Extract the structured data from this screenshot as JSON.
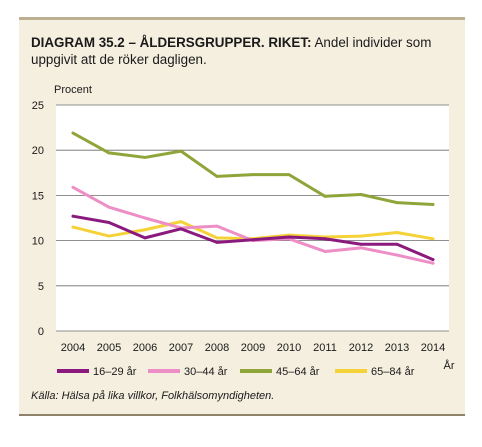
{
  "figure": {
    "title_label": "DIAGRAM 35.2 – ÅLDERSGRUPPER. RIKET:",
    "title_text": " Andel individer som uppgivit att de röker dagligen.",
    "source": "Källa: Hälsa på lika villkor, Folkhälsomyndigheten."
  },
  "chart_data": {
    "type": "line",
    "ylabel": "Procent",
    "xlabel": "År",
    "ylim": [
      0,
      25
    ],
    "yticks": [
      0,
      5,
      10,
      15,
      20,
      25
    ],
    "grid": true,
    "legend_position": "bottom",
    "categories": [
      "2004",
      "2005",
      "2006",
      "2007",
      "2008",
      "2009",
      "2010",
      "2011",
      "2012",
      "2013",
      "2014"
    ],
    "series": [
      {
        "name": "16–29 år",
        "color": "#8b1a7e",
        "values": [
          12.7,
          12.0,
          10.3,
          11.3,
          9.8,
          10.1,
          10.4,
          10.2,
          9.6,
          9.6,
          7.9
        ]
      },
      {
        "name": "30–44 år",
        "color": "#ee8ec6",
        "values": [
          15.9,
          13.7,
          12.5,
          11.4,
          11.6,
          10.0,
          10.2,
          8.8,
          9.2,
          8.4,
          7.5
        ]
      },
      {
        "name": "45–64 år",
        "color": "#8fa53a",
        "values": [
          21.9,
          19.7,
          19.2,
          19.9,
          17.1,
          17.3,
          17.3,
          14.9,
          15.1,
          14.2,
          14.0
        ]
      },
      {
        "name": "65–84 år",
        "color": "#f4d238",
        "values": [
          11.5,
          10.5,
          11.2,
          12.1,
          10.3,
          10.2,
          10.6,
          10.4,
          10.5,
          10.9,
          10.2
        ]
      }
    ]
  }
}
